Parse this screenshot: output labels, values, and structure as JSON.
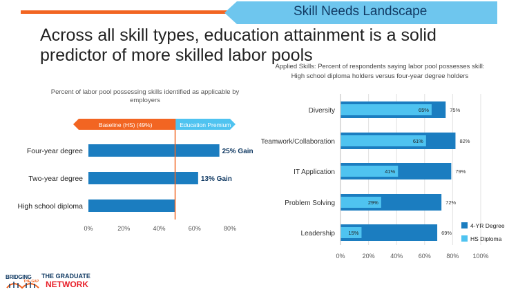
{
  "header": {
    "banner_title": "Skill Needs Landscape",
    "headline": "Across all skill types, education attainment is a solid predictor of more skilled labor pools"
  },
  "colors": {
    "orange": "#f26522",
    "light_blue": "#4fc3f0",
    "dark_blue": "#1b7dc0",
    "navy": "#113a63",
    "banner_blue": "#6ec6ee"
  },
  "logo": {
    "left_text": "BRIDGING",
    "left_sub": "THE GAP",
    "right_line1": "THE GRADUATE",
    "right_line2": "NETWORK"
  },
  "chart_data": [
    {
      "type": "bar",
      "orientation": "horizontal",
      "title": "Percent of labor pool possessing skills identified as applicable by employers",
      "categories": [
        "Four-year degree",
        "Two-year degree",
        "High school diploma"
      ],
      "values": [
        74,
        62,
        49
      ],
      "baseline": 49,
      "annotations": [
        "25% Gain",
        "13% Gain",
        ""
      ],
      "legend_left": "Baseline (HS) (49%)",
      "legend_right": "Education Premium",
      "xticks": [
        "0%",
        "20%",
        "40%",
        "60%",
        "80%"
      ],
      "xlim": [
        0,
        80
      ]
    },
    {
      "type": "bar",
      "orientation": "horizontal",
      "title": "Applied Skills: Percent of respondents saying labor pool possesses skill: High school diploma holders versus four-year degree holders",
      "categories": [
        "Diversity",
        "Teamwork/Collaboration",
        "IT Application",
        "Problem Solving",
        "Leadership"
      ],
      "series": [
        {
          "name": "4-YR Degree",
          "values": [
            75,
            82,
            79,
            72,
            69
          ],
          "labels": [
            "75%",
            "82%",
            "79%",
            "72%",
            "69%"
          ]
        },
        {
          "name": "HS Diploma",
          "values": [
            65,
            61,
            41,
            29,
            15
          ],
          "labels": [
            "65%",
            "61%",
            "41%",
            "29%",
            "15%"
          ]
        }
      ],
      "xticks": [
        "0%",
        "20%",
        "40%",
        "60%",
        "80%",
        "100%"
      ],
      "xlim": [
        0,
        100
      ]
    }
  ]
}
